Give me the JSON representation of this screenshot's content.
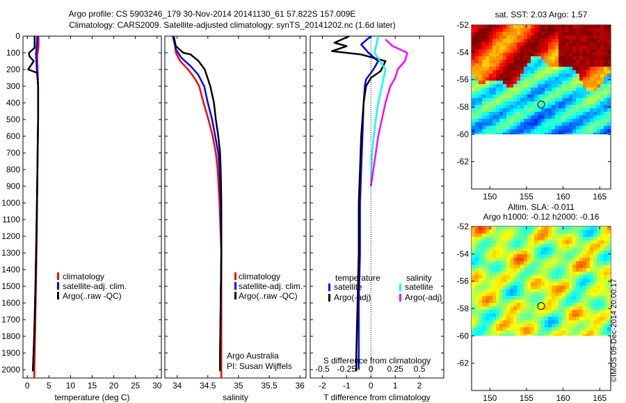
{
  "header": {
    "line1": "Argo profile: CS 5903246_179 30-Nov-2014 20141130_61 57.822S 157.009E",
    "line2": "Climatology: CARS2009. Satellite-adjusted climatology: synTS_20141202.nc (1.6d later)"
  },
  "credit": "©IMOS 09-Dec-2014 20:00:17",
  "chart_data": [
    {
      "type": "line",
      "name": "temperature-profile",
      "xlabel": "temperature (deg C)",
      "xlim": [
        -1,
        31
      ],
      "xticks": [
        0,
        5,
        10,
        15,
        20,
        25,
        30
      ],
      "ylim": [
        0,
        2050
      ],
      "yticks": [
        0,
        100,
        200,
        300,
        400,
        500,
        600,
        700,
        800,
        900,
        1000,
        1100,
        1200,
        1300,
        1400,
        1500,
        1600,
        1700,
        1800,
        1900,
        2000
      ],
      "legend": [
        "climatology",
        "satellite-adj. clim.",
        "Argo(..raw -QC)"
      ],
      "series": [
        {
          "name": "climatology",
          "color": "#ff0000",
          "points": [
            [
              2.6,
              0
            ],
            [
              2.6,
              60
            ],
            [
              2.3,
              120
            ],
            [
              2.4,
              200
            ],
            [
              2.5,
              300
            ],
            [
              2.5,
              500
            ],
            [
              2.4,
              700
            ],
            [
              2.3,
              900
            ],
            [
              2.2,
              1200
            ],
            [
              2.0,
              1500
            ],
            [
              1.8,
              1800
            ],
            [
              1.6,
              2050
            ]
          ]
        },
        {
          "name": "satellite-adj. clim.",
          "color": "#0000ff",
          "points": [
            [
              2.3,
              0
            ],
            [
              2.2,
              60
            ],
            [
              2.0,
              110
            ],
            [
              2.2,
              200
            ],
            [
              2.5,
              300
            ],
            [
              2.5,
              500
            ],
            [
              2.4,
              700
            ],
            [
              2.3,
              900
            ],
            [
              2.1,
              1200
            ],
            [
              1.9,
              1500
            ],
            [
              1.6,
              1800
            ],
            [
              1.3,
              2000
            ]
          ]
        },
        {
          "name": "Argo(..raw -QC)",
          "color": "#000000",
          "points": [
            [
              1.7,
              0
            ],
            [
              1.7,
              70
            ],
            [
              0.4,
              100
            ],
            [
              0.5,
              120
            ],
            [
              1.5,
              150
            ],
            [
              0.2,
              200
            ],
            [
              2.3,
              220
            ],
            [
              2.5,
              300
            ],
            [
              2.5,
              500
            ],
            [
              2.4,
              700
            ],
            [
              2.3,
              900
            ],
            [
              2.1,
              1200
            ],
            [
              1.9,
              1500
            ],
            [
              1.6,
              1800
            ],
            [
              1.3,
              2010
            ]
          ]
        }
      ]
    },
    {
      "type": "line",
      "name": "salinity-profile",
      "xlabel": "salinity",
      "xlim": [
        33.8,
        36.1
      ],
      "xticks": [
        34,
        34.5,
        35,
        35.5,
        36
      ],
      "xticklabels": [
        "34",
        "34.5",
        "35",
        "35.5",
        "36"
      ],
      "ylim": [
        0,
        2050
      ],
      "legend": [
        "climatology",
        "satellite-adj. clim.",
        "Argo(..raw -QC)"
      ],
      "annotation": [
        "Argo Australia",
        "PI: Susan Wijffels"
      ],
      "series": [
        {
          "name": "climatology",
          "color": "#ff0000",
          "points": [
            [
              33.95,
              0
            ],
            [
              33.98,
              100
            ],
            [
              34.05,
              150
            ],
            [
              34.18,
              200
            ],
            [
              34.28,
              250
            ],
            [
              34.36,
              300
            ],
            [
              34.43,
              400
            ],
            [
              34.51,
              500
            ],
            [
              34.58,
              600
            ],
            [
              34.63,
              700
            ],
            [
              34.66,
              800
            ],
            [
              34.69,
              1000
            ],
            [
              34.72,
              1300
            ],
            [
              34.72,
              1600
            ],
            [
              34.72,
              2050
            ]
          ]
        },
        {
          "name": "satellite-adj. clim.",
          "color": "#0000ff",
          "points": [
            [
              33.93,
              0
            ],
            [
              33.98,
              80
            ],
            [
              34.07,
              130
            ],
            [
              34.22,
              180
            ],
            [
              34.34,
              230
            ],
            [
              34.44,
              300
            ],
            [
              34.5,
              400
            ],
            [
              34.57,
              500
            ],
            [
              34.62,
              600
            ],
            [
              34.67,
              700
            ],
            [
              34.69,
              800
            ],
            [
              34.71,
              1000
            ],
            [
              34.72,
              1300
            ],
            [
              34.71,
              1600
            ],
            [
              34.7,
              1900
            ],
            [
              34.7,
              2000
            ]
          ]
        },
        {
          "name": "Argo(..raw -QC)",
          "color": "#000000",
          "points": [
            [
              33.94,
              0
            ],
            [
              33.98,
              60
            ],
            [
              34.1,
              100
            ],
            [
              34.22,
              110
            ],
            [
              34.35,
              150
            ],
            [
              34.45,
              200
            ],
            [
              34.54,
              300
            ],
            [
              34.6,
              400
            ],
            [
              34.63,
              500
            ],
            [
              34.67,
              600
            ],
            [
              34.7,
              700
            ],
            [
              34.71,
              800
            ],
            [
              34.72,
              1000
            ],
            [
              34.72,
              1300
            ],
            [
              34.71,
              1600
            ],
            [
              34.7,
              1900
            ],
            [
              34.7,
              2010
            ]
          ]
        }
      ]
    },
    {
      "type": "line",
      "name": "difference-profile",
      "xlabel": "T difference from climatology",
      "xlabel_top": "S difference from climatology",
      "xlim": [
        -2.5,
        3
      ],
      "xticks": [
        -2,
        -1,
        0,
        1,
        2
      ],
      "xticks_top": [
        -0.5,
        -0.25,
        0,
        0.25,
        0.5
      ],
      "xticklabels_top": [
        "-0.5",
        "-0.25",
        "0",
        "0.25",
        "0.5"
      ],
      "ylim": [
        0,
        2050
      ],
      "legend_temperature_title": "temperature",
      "legend_salinity_title": "salinity",
      "legend": [
        "satellite",
        "Argo(-adj)",
        "satellite",
        "Argo(-adj)"
      ],
      "series": [
        {
          "name": "satellite",
          "group": "temperature",
          "color": "#0000ff",
          "points": [
            [
              0,
              0
            ],
            [
              -0.4,
              50
            ],
            [
              -0.1,
              100
            ],
            [
              0.3,
              150
            ],
            [
              0.1,
              200
            ],
            [
              -0.2,
              260
            ],
            [
              -0.25,
              300
            ],
            [
              -0.3,
              400
            ],
            [
              -0.35,
              600
            ],
            [
              -0.4,
              800
            ],
            [
              -0.45,
              1000
            ],
            [
              -0.45,
              1300
            ],
            [
              -0.5,
              1600
            ],
            [
              -0.5,
              1900
            ],
            [
              -0.5,
              2000
            ]
          ]
        },
        {
          "name": "Argo(-adj)",
          "group": "temperature",
          "color": "#000000",
          "points": [
            [
              -0.9,
              0
            ],
            [
              -1.5,
              40
            ],
            [
              -1.0,
              60
            ],
            [
              -1.6,
              90
            ],
            [
              -0.4,
              110
            ],
            [
              0.6,
              150
            ],
            [
              0.4,
              210
            ],
            [
              0.0,
              250
            ],
            [
              -0.2,
              300
            ],
            [
              -0.3,
              400
            ],
            [
              -0.4,
              600
            ],
            [
              -0.45,
              800
            ],
            [
              -0.5,
              1000
            ],
            [
              -0.5,
              1300
            ],
            [
              -0.55,
              1600
            ],
            [
              -0.6,
              1900
            ],
            [
              -0.6,
              2010
            ]
          ]
        },
        {
          "name": "satellite",
          "group": "salinity",
          "color": "#00ffff",
          "points": [
            [
              0.3,
              0
            ],
            [
              0.15,
              100
            ],
            [
              0.6,
              200
            ],
            [
              0.45,
              300
            ],
            [
              0.3,
              400
            ],
            [
              0.2,
              500
            ],
            [
              0.12,
              600
            ],
            [
              0.05,
              700
            ],
            [
              0.02,
              800
            ],
            [
              0.0,
              900
            ]
          ]
        },
        {
          "name": "Argo(-adj)",
          "group": "salinity",
          "color": "#ff00ff",
          "points": [
            [
              0.6,
              20
            ],
            [
              0.9,
              60
            ],
            [
              1.5,
              100
            ],
            [
              1.4,
              150
            ],
            [
              1.1,
              200
            ],
            [
              1.0,
              250
            ],
            [
              0.8,
              300
            ],
            [
              0.6,
              400
            ],
            [
              0.45,
              500
            ],
            [
              0.3,
              600
            ],
            [
              0.2,
              700
            ],
            [
              0.1,
              800
            ],
            [
              0.0,
              900
            ]
          ]
        }
      ]
    },
    {
      "type": "heatmap",
      "name": "sst-map",
      "title": "sat. SST: 2.03 Argo: 1.57",
      "xticks": [
        150,
        155,
        160,
        165
      ],
      "yticks": [
        -52,
        -54,
        -56,
        -58,
        -60,
        -62
      ],
      "xlim": [
        147.5,
        166.5
      ],
      "ylim": [
        -64,
        -52
      ],
      "data_lat_min": -60,
      "argo_marker": {
        "lon": 157.009,
        "lat": -57.822
      }
    },
    {
      "type": "heatmap",
      "name": "sla-map",
      "title": "Altim. SLA: -0.011",
      "subtitle": "Argo h1000: -0.12 h2000: -0.16",
      "xticks": [
        150,
        155,
        160,
        165
      ],
      "yticks": [
        -52,
        -54,
        -56,
        -58,
        -60,
        -62
      ],
      "xlim": [
        147.5,
        166.5
      ],
      "ylim": [
        -64,
        -52
      ],
      "data_lat_min": -60,
      "argo_marker": {
        "lon": 157.009,
        "lat": -57.822
      }
    }
  ]
}
